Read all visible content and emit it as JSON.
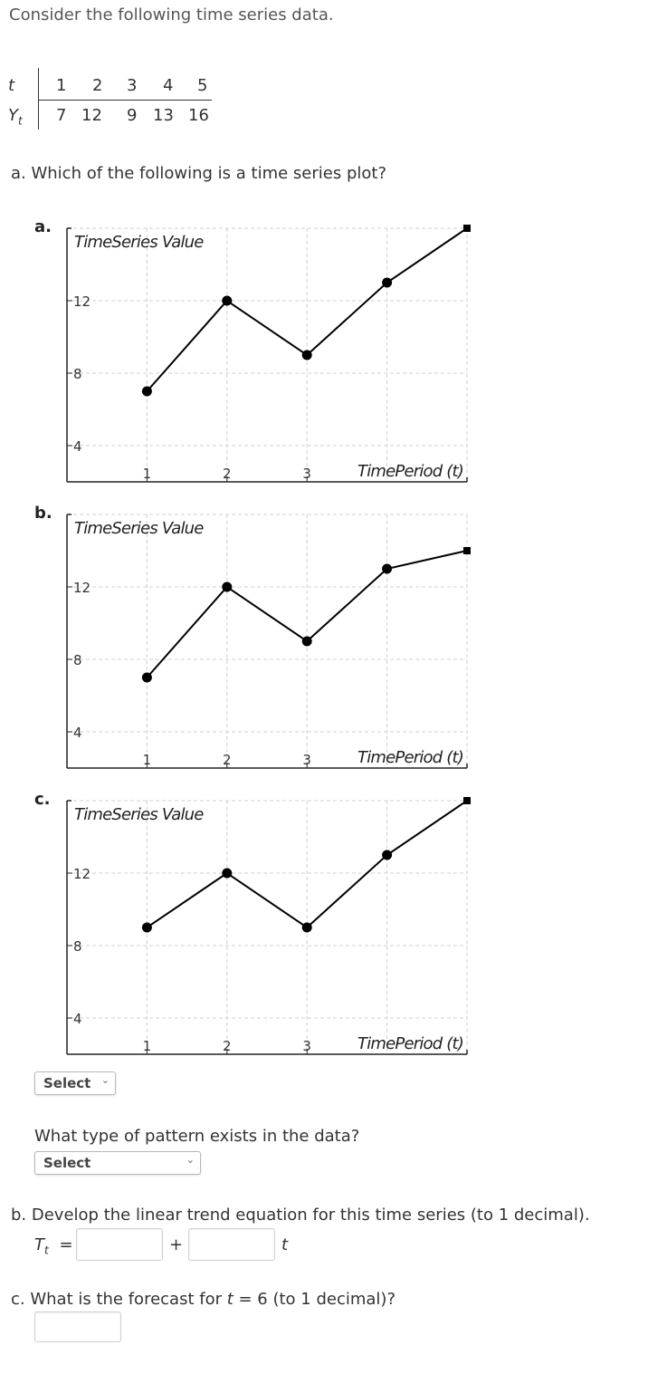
{
  "intro": "Consider the following time series data.",
  "data_table": {
    "t_label": "t",
    "y_label": "Y",
    "y_sub": "t",
    "t_values": [
      "1",
      "2",
      "3",
      "4",
      "5"
    ],
    "y_values": [
      "7",
      "12",
      "9",
      "13",
      "16"
    ]
  },
  "question_a": {
    "text": "a. Which of the following is a time series plot?",
    "options": [
      {
        "letter": "a."
      },
      {
        "letter": "b."
      },
      {
        "letter": "c."
      }
    ],
    "select_label": "Select"
  },
  "pattern_question": {
    "text": "What type of pattern exists in the data?",
    "select_label": "Select"
  },
  "question_b": {
    "text": "b. Develop the linear trend equation for this time series (to 1 decimal).",
    "lhs": "T",
    "lhs_sub": "t",
    "equals": "=",
    "plus": "+",
    "var": "t"
  },
  "question_c": {
    "text_before": "c. What is the forecast for ",
    "var": "t",
    "text_after": " = 6 (to 1 decimal)?"
  },
  "chart_data": [
    {
      "type": "line",
      "title": "TimeSeries Value",
      "xlabel": "TimePeriod (t)",
      "x": [
        1,
        2,
        3,
        4,
        5
      ],
      "y": [
        7,
        12,
        9,
        13,
        16
      ],
      "x_ticks": [
        "1",
        "2",
        "3"
      ],
      "y_ticks": [
        "12",
        "8",
        "4"
      ],
      "xlim": [
        0,
        5
      ],
      "ylim": [
        2,
        16
      ],
      "grid": true
    },
    {
      "type": "line",
      "title": "TimeSeries Value",
      "xlabel": "TimePeriod (t)",
      "x": [
        1,
        2,
        3,
        4,
        5
      ],
      "y": [
        7,
        12,
        9,
        13,
        14
      ],
      "x_ticks": [
        "1",
        "2",
        "3"
      ],
      "y_ticks": [
        "12",
        "8",
        "4"
      ],
      "xlim": [
        0,
        5
      ],
      "ylim": [
        2,
        16
      ],
      "grid": true
    },
    {
      "type": "line",
      "title": "TimeSeries Value",
      "xlabel": "TimePeriod (t)",
      "x": [
        1,
        2,
        3,
        4,
        5
      ],
      "y": [
        9,
        12,
        9,
        13,
        16
      ],
      "x_ticks": [
        "1",
        "2",
        "3"
      ],
      "y_ticks": [
        "12",
        "8",
        "4"
      ],
      "xlim": [
        0,
        5
      ],
      "ylim": [
        2,
        16
      ],
      "grid": true
    }
  ]
}
